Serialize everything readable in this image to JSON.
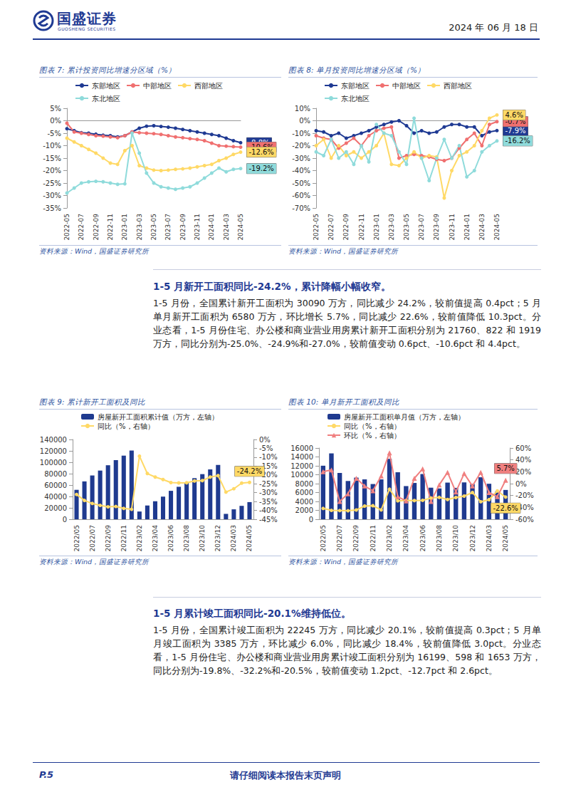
{
  "header": {
    "company": "国盛证券",
    "company_en": "GUOSHENG SECURITIES",
    "date": "2024 年 06 月 18 日"
  },
  "chart_data": [
    {
      "type": "line",
      "title": "图表 7: 累计投资同比增速分区域（%）",
      "source": "资料来源：Wind，国盛证券研究所",
      "categories": [
        "2022-05",
        null,
        "2022-07",
        null,
        "2022-09",
        null,
        "2022-11",
        null,
        "2023-01",
        null,
        "2023-03",
        null,
        "2023-05",
        null,
        "2023-07",
        null,
        "2023-09",
        null,
        "2023-11",
        null,
        "2024-01",
        null,
        "2024-03",
        null,
        "2024-05"
      ],
      "series": [
        {
          "name": "东部地区",
          "color": "#1f3a93",
          "marker": "circle",
          "end_label": "-8.8%",
          "values": [
            -3.2,
            -4.0,
            -4.8,
            -5.0,
            -5.4,
            -5.8,
            -6.0,
            -6.5,
            -6.0,
            -4.5,
            -3.0,
            -2.2,
            -2.0,
            -2.3,
            -2.6,
            -3.0,
            -3.5,
            -4.0,
            -4.5,
            -5.0,
            -5.5,
            -6.0,
            -7.0,
            -8.0,
            -8.8
          ]
        },
        {
          "name": "中部地区",
          "color": "#f07070",
          "marker": "circle",
          "end_label": "-10.6%",
          "values": [
            -1.0,
            -4.5,
            -5.0,
            -5.5,
            -6.0,
            -6.2,
            -6.5,
            -6.8,
            -6.0,
            -4.5,
            -4.8,
            -5.0,
            -5.2,
            -5.5,
            -6.0,
            -6.5,
            -6.8,
            -7.2,
            -7.5,
            -8.0,
            -9.0,
            -10.0,
            -10.2,
            -10.4,
            -10.6
          ]
        },
        {
          "name": "西部地区",
          "color": "#ffd966",
          "marker": "circle",
          "end_label": "-12.6%",
          "values": [
            -7.0,
            -8.5,
            -10.0,
            -11.5,
            -13.0,
            -15.0,
            -17.0,
            -17.5,
            -12.0,
            -10.0,
            -18.0,
            -19.0,
            -19.8,
            -20.0,
            -19.8,
            -19.5,
            -19.3,
            -19.0,
            -18.5,
            -18.0,
            -17.5,
            -16.0,
            -15.0,
            -13.5,
            -12.6
          ]
        },
        {
          "name": "东北地区",
          "color": "#8fdbdb",
          "marker": "circle",
          "end_label": "-19.2%",
          "values": [
            -29.0,
            -27.0,
            -25.0,
            -24.5,
            -24.3,
            -24.5,
            -25.0,
            -25.5,
            -25.3,
            -5.0,
            -13.0,
            -21.0,
            -25.0,
            -26.5,
            -27.0,
            -27.5,
            -27.0,
            -26.5,
            -25.0,
            -23.0,
            -21.0,
            -19.0,
            -20.5,
            -19.5,
            -19.2
          ]
        }
      ],
      "ylim": [
        -35,
        5
      ],
      "yticks": [
        {
          "value": -35,
          "label": "-35%"
        },
        {
          "value": -30,
          "label": "-30%"
        },
        {
          "value": -25,
          "label": "-25%"
        },
        {
          "value": -20,
          "label": "-20%"
        },
        {
          "value": -15,
          "label": "-15%"
        },
        {
          "value": -10,
          "label": "-10%"
        },
        {
          "value": -5,
          "label": "-5%"
        },
        {
          "value": 0,
          "label": "0%"
        },
        {
          "value": 5,
          "label": "5%"
        }
      ],
      "grid": false,
      "legend": "top-left"
    },
    {
      "type": "line",
      "title": "图表 8: 单月投资同比增速分区域（%）",
      "source": "资料来源：Wind，国盛证券研究所",
      "categories": [
        "2022-05",
        null,
        "2022-07",
        null,
        "2022-09",
        null,
        "2022-11",
        null,
        "2023-01",
        null,
        "2023-03",
        null,
        "2023-05",
        null,
        "2023-07",
        null,
        "2023-09",
        null,
        "2023-11",
        null,
        "2024-01",
        null,
        "2024-03",
        null,
        "2024-05"
      ],
      "series": [
        {
          "name": "东部地区",
          "color": "#1f3a93",
          "marker": "circle",
          "end_label": "-7.9%",
          "values": [
            -8,
            -9,
            -12,
            -10,
            -14,
            -12,
            -10,
            -8,
            -5,
            -3,
            -1,
            0,
            -4,
            -10,
            -8,
            -10,
            -9,
            -5,
            -3,
            -3,
            -5,
            -5,
            -12,
            -9,
            -7.9
          ]
        },
        {
          "name": "中部地区",
          "color": "#f07070",
          "marker": "circle",
          "end_label": "-0.7%",
          "values": [
            -12,
            -14,
            -15,
            -22,
            -18,
            -14,
            -20,
            -12,
            -8,
            -6,
            -5,
            -30,
            -28,
            -27,
            -28,
            -29,
            -31,
            -32,
            -30,
            -22,
            -15,
            -10,
            -20,
            -3,
            -0.7
          ]
        },
        {
          "name": "西部地区",
          "color": "#ffd966",
          "marker": "circle",
          "end_label": "4.6%",
          "values": [
            -20,
            -15,
            -30,
            -20,
            -28,
            -25,
            -30,
            -25,
            -20,
            -10,
            -35,
            -36,
            -30,
            -25,
            -30,
            -28,
            -29,
            -62,
            -40,
            -28,
            -25,
            -20,
            -8,
            2,
            4.6
          ]
        },
        {
          "name": "东北地区",
          "color": "#8fdbdb",
          "marker": "circle",
          "end_label": "-16.2%",
          "values": [
            -25,
            -28,
            -15,
            -30,
            -25,
            -35,
            -20,
            -33,
            -3,
            -10,
            -12,
            -25,
            -35,
            2,
            -30,
            -48,
            -30,
            -15,
            -30,
            -20,
            -45,
            -40,
            -25,
            -20,
            -16.2
          ]
        }
      ],
      "ylim": [
        -70,
        10
      ],
      "yticks": [
        {
          "value": -70,
          "label": "-70%"
        },
        {
          "value": -60,
          "label": "-60%"
        },
        {
          "value": -50,
          "label": "-50%"
        },
        {
          "value": -40,
          "label": "-40%"
        },
        {
          "value": -30,
          "label": "-30%"
        },
        {
          "value": -20,
          "label": "-20%"
        },
        {
          "value": -10,
          "label": "-10%"
        },
        {
          "value": 0,
          "label": "0%"
        },
        {
          "value": 10,
          "label": "10%"
        }
      ],
      "grid": false,
      "legend": "top-left"
    },
    {
      "type": "bar",
      "title": "图表 9: 累计新开工面积及同比",
      "source": "资料来源：Wind，国盛证券研究所",
      "categories": [
        "2022/05",
        null,
        "2022/07",
        null,
        "2022/09",
        null,
        "2022/11",
        null,
        "2023/02",
        null,
        "2023/04",
        null,
        "2023/06",
        null,
        "2023/08",
        null,
        "2023/10",
        null,
        "2023/12",
        null,
        "2024/03",
        null,
        "2024/05"
      ],
      "series": [
        {
          "name": "房屋新开工面积累计值（万方，左轴）",
          "type": "bar",
          "color": "#1f3a8f",
          "values": [
            51628,
            66423,
            76827,
            85419,
            94767,
            103722,
            111632,
            120587,
            13567,
            24121,
            31569,
            39723,
            49880,
            56969,
            63891,
            72123,
            79177,
            87456,
            95376,
            9429,
            17401,
            23510,
            30090
          ]
        },
        {
          "name": "同比（%，右轴）",
          "type": "line",
          "axis": "y2",
          "color": "#ffd966",
          "marker": "circle",
          "end_label": "-24.2%",
          "values": [
            -31.0,
            -34.4,
            -36.1,
            -37.2,
            -38.0,
            -37.8,
            -38.9,
            -39.4,
            -9.4,
            -19.2,
            -21.2,
            -22.6,
            -24.3,
            -24.5,
            -24.4,
            -23.4,
            -23.2,
            -21.2,
            -20.4,
            -29.7,
            -27.8,
            -24.6,
            -24.2
          ]
        }
      ],
      "ylim": [
        0,
        140000
      ],
      "yticks": [
        0,
        20000,
        40000,
        60000,
        80000,
        100000,
        120000,
        140000
      ],
      "y2lim": [
        -45,
        0
      ],
      "y2ticks": [
        {
          "value": -45,
          "label": "-45%"
        },
        {
          "value": -40,
          "label": "-40%"
        },
        {
          "value": -35,
          "label": "-35%"
        },
        {
          "value": -30,
          "label": "-30%"
        },
        {
          "value": -25,
          "label": "-25%"
        },
        {
          "value": -20,
          "label": "-20%"
        },
        {
          "value": -15,
          "label": "-15%"
        },
        {
          "value": -10,
          "label": "-10%"
        },
        {
          "value": -5,
          "label": "-5%"
        },
        {
          "value": 0,
          "label": "0%"
        }
      ],
      "grid": false,
      "legend": "top-left"
    },
    {
      "type": "bar",
      "title": "图表 10: 单月新开工面积及同比",
      "source": "资料来源：Wind，国盛证券研究所",
      "categories": [
        "2022/05",
        null,
        "2022/07",
        null,
        "2022/09",
        null,
        "2022/11",
        null,
        "2023/02",
        null,
        "2023/04",
        null,
        "2023/06",
        null,
        "2023/08",
        null,
        "2023/10",
        null,
        "2023/12",
        null,
        "2024/03",
        null,
        "2024/05"
      ],
      "series": [
        {
          "name": "房屋新开工面积单月值（万方，左轴）",
          "type": "bar",
          "color": "#1f3a8f",
          "values": [
            12025,
            14795,
            10404,
            8592,
            9348,
            8955,
            7910,
            8955,
            13567,
            10554,
            7448,
            8154,
            10157,
            7089,
            6922,
            8232,
            7054,
            8279,
            7920,
            9429,
            7972,
            6225,
            6580
          ]
        },
        {
          "name": "同比（%，右轴）",
          "type": "line",
          "axis": "y2",
          "color": "#ffd966",
          "marker": "circle",
          "end_label": "-22.6%",
          "values": [
            -41.8,
            -45.1,
            -45.4,
            -45.7,
            -44.4,
            -37.8,
            -37.2,
            -44.3,
            -9.4,
            -29.0,
            -28.3,
            -28.5,
            -28.1,
            -24.2,
            -23.2,
            -26.8,
            -23.4,
            -21.0,
            -15.0,
            -30.5,
            -27.0,
            -12.3,
            -22.6
          ]
        },
        {
          "name": "环比（%，右轴）",
          "type": "line",
          "axis": "y2",
          "color": "#f08080",
          "marker": "triangle",
          "end_label": "5.7%",
          "values": [
            20,
            23,
            -30,
            -17,
            9,
            -4,
            -12,
            13,
            52,
            -22,
            -29,
            9,
            25,
            -30,
            -2,
            19,
            -14,
            17,
            -4,
            19,
            -15,
            -22,
            5.7
          ]
        }
      ],
      "ylim": [
        0,
        16000
      ],
      "yticks": [
        0,
        2000,
        4000,
        6000,
        8000,
        10000,
        12000,
        14000,
        16000
      ],
      "y2lim": [
        -60,
        60
      ],
      "y2ticks": [
        {
          "value": -60,
          "label": "-60%"
        },
        {
          "value": -40,
          "label": "-40%"
        },
        {
          "value": -20,
          "label": "-20%"
        },
        {
          "value": 0,
          "label": "0%"
        },
        {
          "value": 20,
          "label": "20%"
        },
        {
          "value": 40,
          "label": "40%"
        },
        {
          "value": 60,
          "label": "60%"
        }
      ],
      "grid": false,
      "legend": "top-left"
    }
  ],
  "sections": [
    {
      "heading": "1-5 月新开工面积同比-24.2%，累计降幅小幅收窄。",
      "body": "1-5 月份，全国累计新开工面积为 30090 万方，同比减少 24.2%，较前值提高 0.4pct；5 月单月新开工面积为 6580 万方，环比增长 5.7%，同比减少 22.6%，较前值降低 10.3pct。分业态看，1-5 月份住宅、办公楼和商业营业用房累计新开工面积分别为 21760、822 和 1919 万方，同比分别为-25.0%、-24.9%和-27.0%，较前值变动 0.6pct、-10.6pct 和 4.4pct。"
    },
    {
      "heading": "1-5 月累计竣工面积同比-20.1%维持低位。",
      "body": "1-5 月份，全国累计竣工面积为 22245 万方，同比减少 20.1%，较前值提高 0.3pct；5 月单月竣工面积为 3385 万方，环比减少 6.0%，同比减少 18.4%，较前值降低 3.0pct。分业态看，1-5 月份住宅、办公楼和商业营业用房累计竣工面积分别为 16199、598 和 1653 万方，同比分别为-19.8%、-32.2%和-20.5%，较前值变动 1.2pct、-12.7pct 和 2.6pct。"
    }
  ],
  "footer": {
    "page": "P.5",
    "disclaimer": "请仔细阅读本报告末页声明"
  }
}
